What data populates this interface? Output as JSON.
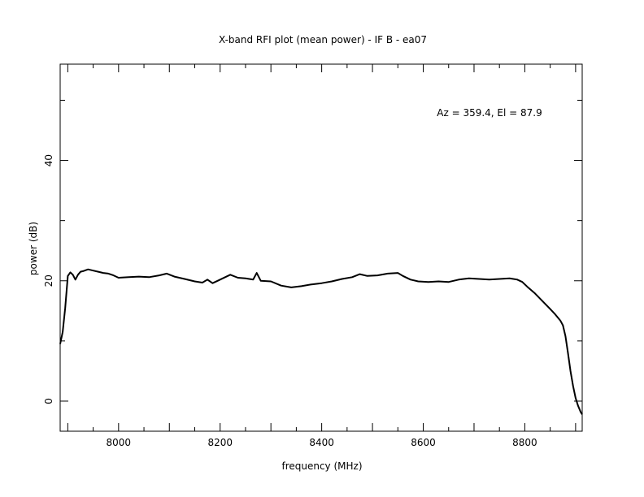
{
  "chart_data": {
    "type": "line",
    "title": "X-band RFI plot (mean power) - IF B - ea07",
    "xlabel": "frequency (MHz)",
    "ylabel": "power (dB)",
    "annotation": "Az = 359.4, El = 87.9",
    "xlim": [
      7885,
      8913
    ],
    "ylim": [
      -5,
      56
    ],
    "x_ticks": [
      8000,
      8200,
      8400,
      8600,
      8800
    ],
    "y_ticks": [
      0,
      20,
      40
    ],
    "x_tick_labels": [
      "8000",
      "8200",
      "8400",
      "8600",
      "8800"
    ],
    "y_tick_labels": [
      "0",
      "20",
      "40"
    ],
    "grid": false,
    "line_color": "#000000",
    "series": [
      {
        "x": [
          7885,
          7890,
          7895,
          7900,
          7905,
          7910,
          7915,
          7920,
          7925,
          7930,
          7940,
          7950,
          7960,
          7970,
          7980,
          7990,
          8000,
          8020,
          8040,
          8060,
          8080,
          8095,
          8110,
          8130,
          8150,
          8165,
          8175,
          8185,
          8195,
          8205,
          8220,
          8235,
          8250,
          8265,
          8272,
          8280,
          8300,
          8320,
          8340,
          8360,
          8380,
          8400,
          8420,
          8440,
          8460,
          8475,
          8490,
          8510,
          8530,
          8550,
          8560,
          8575,
          8590,
          8610,
          8630,
          8650,
          8670,
          8690,
          8710,
          8730,
          8750,
          8770,
          8785,
          8795,
          8805,
          8820,
          8835,
          8850,
          8860,
          8870,
          8875,
          8880,
          8885,
          8890,
          8895,
          8900,
          8905,
          8910,
          8913
        ],
        "y": [
          9.5,
          11.5,
          15.5,
          20.8,
          21.4,
          21.0,
          20.2,
          21.0,
          21.5,
          21.6,
          21.9,
          21.7,
          21.5,
          21.3,
          21.2,
          20.9,
          20.5,
          20.6,
          20.7,
          20.6,
          20.9,
          21.2,
          20.7,
          20.3,
          19.9,
          19.7,
          20.2,
          19.6,
          20.0,
          20.4,
          21.0,
          20.5,
          20.4,
          20.2,
          21.3,
          20.0,
          19.9,
          19.2,
          18.9,
          19.1,
          19.4,
          19.6,
          19.9,
          20.3,
          20.6,
          21.1,
          20.8,
          20.9,
          21.2,
          21.3,
          20.8,
          20.2,
          19.9,
          19.8,
          19.9,
          19.8,
          20.2,
          20.4,
          20.3,
          20.2,
          20.3,
          20.4,
          20.2,
          19.8,
          19.0,
          17.9,
          16.6,
          15.3,
          14.4,
          13.4,
          12.6,
          10.8,
          8.0,
          5.0,
          2.5,
          0.5,
          -0.8,
          -1.8,
          -2.2
        ]
      }
    ]
  }
}
